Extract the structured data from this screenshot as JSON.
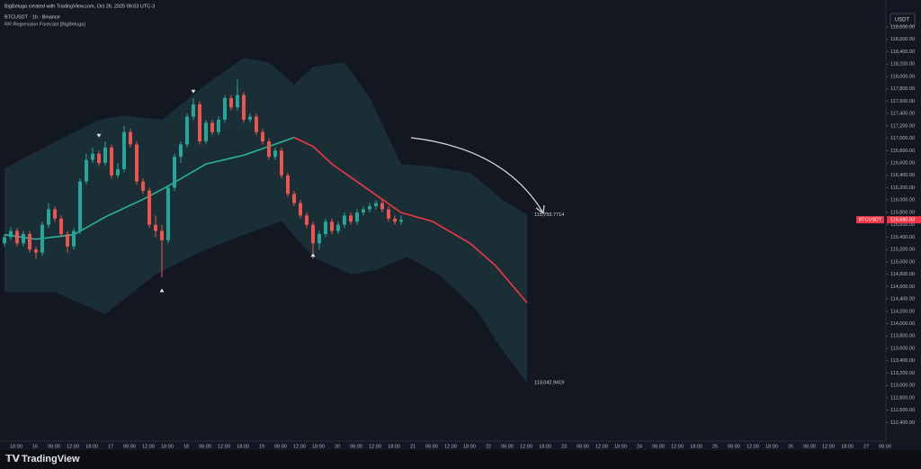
{
  "header": {
    "credit": "BigBeluga created with TradingView.com, Oct 26, 2025 06:03 UTC-3",
    "symbol": "BTCUSDT · 1h · Binance",
    "indicator": "RR Regression Forecast [BigBeluga]"
  },
  "footer": {
    "brand": "TradingView"
  },
  "chart_data": {
    "type": "candlestick",
    "currency": "USDT",
    "up_color": "#26a69a",
    "down_color": "#ef5350",
    "ylim": [
      112100,
      118975
    ],
    "yticks": [
      {
        "value": 118800,
        "label": "118,800.00"
      },
      {
        "value": 118600,
        "label": "118,600.00"
      },
      {
        "value": 118400,
        "label": "118,400.00"
      },
      {
        "value": 118200,
        "label": "118,200.00"
      },
      {
        "value": 118000,
        "label": "118,000.00"
      },
      {
        "value": 117800,
        "label": "117,800.00"
      },
      {
        "value": 117600,
        "label": "117,600.00"
      },
      {
        "value": 117400,
        "label": "117,400.00"
      },
      {
        "value": 117200,
        "label": "117,200.00"
      },
      {
        "value": 117000,
        "label": "117,000.00"
      },
      {
        "value": 116800,
        "label": "116,800.00"
      },
      {
        "value": 116600,
        "label": "116,600.00"
      },
      {
        "value": 116400,
        "label": "116,400.00"
      },
      {
        "value": 116200,
        "label": "116,200.00"
      },
      {
        "value": 116000,
        "label": "116,000.00"
      },
      {
        "value": 115800,
        "label": "115,800.00"
      },
      {
        "value": 115600,
        "label": "115,600.00"
      },
      {
        "value": 115400,
        "label": "115,400.00"
      },
      {
        "value": 115200,
        "label": "115,200.00"
      },
      {
        "value": 115000,
        "label": "115,000.00"
      },
      {
        "value": 114800,
        "label": "114,800.00"
      },
      {
        "value": 114600,
        "label": "114,600.00"
      },
      {
        "value": 114400,
        "label": "114,400.00"
      },
      {
        "value": 114200,
        "label": "114,200.00"
      },
      {
        "value": 114000,
        "label": "114,000.00"
      },
      {
        "value": 113800,
        "label": "113,800.00"
      },
      {
        "value": 113600,
        "label": "113,600.00"
      },
      {
        "value": 113400,
        "label": "113,400.00"
      },
      {
        "value": 113200,
        "label": "113,200.00"
      },
      {
        "value": 113000,
        "label": "113,000.00"
      },
      {
        "value": 112800,
        "label": "112,800.00"
      },
      {
        "value": 112600,
        "label": "112,600.00"
      },
      {
        "value": 112400,
        "label": "112,400.00"
      }
    ],
    "x_labels": [
      "18:00",
      "16",
      "06:00",
      "12:00",
      "18:00",
      "17",
      "06:00",
      "12:00",
      "18:00",
      "18",
      "06:00",
      "12:00",
      "18:00",
      "19",
      "06:00",
      "12:00",
      "18:00",
      "20",
      "06:00",
      "12:00",
      "18:00",
      "21",
      "06:00",
      "12:00",
      "18:00",
      "22",
      "06:00",
      "12:00",
      "18:00",
      "23",
      "06:00",
      "12:00",
      "18:00",
      "24",
      "06:00",
      "12:00",
      "18:00",
      "25",
      "06:00",
      "12:00",
      "18:00",
      "26",
      "06:00",
      "12:00",
      "18:00",
      "27",
      "06:00"
    ],
    "ohlc": [
      [
        115300,
        115450,
        115250,
        115400
      ],
      [
        115400,
        115560,
        115350,
        115500
      ],
      [
        115500,
        115550,
        115250,
        115300
      ],
      [
        115300,
        115500,
        115250,
        115450
      ],
      [
        115450,
        115500,
        115150,
        115200
      ],
      [
        115200,
        115250,
        115050,
        115150
      ],
      [
        115150,
        115650,
        115100,
        115600
      ],
      [
        115600,
        115950,
        115550,
        115850
      ],
      [
        115850,
        115900,
        115650,
        115700
      ],
      [
        115700,
        115750,
        115400,
        115450
      ],
      [
        115450,
        115500,
        115150,
        115250
      ],
      [
        115250,
        115550,
        115200,
        115500
      ],
      [
        115500,
        116350,
        115450,
        116300
      ],
      [
        116300,
        116750,
        116250,
        116650
      ],
      [
        116650,
        116850,
        116600,
        116750
      ],
      [
        116750,
        116800,
        116550,
        116600
      ],
      [
        116600,
        116950,
        116550,
        116850
      ],
      [
        116850,
        116900,
        116350,
        116400
      ],
      [
        116400,
        116600,
        116350,
        116500
      ],
      [
        116500,
        117200,
        116450,
        117100
      ],
      [
        117100,
        117150,
        116850,
        116900
      ],
      [
        116900,
        116950,
        116250,
        116300
      ],
      [
        116300,
        116350,
        116100,
        116150
      ],
      [
        116150,
        116200,
        115550,
        115600
      ],
      [
        115600,
        115750,
        115400,
        115500
      ],
      [
        115500,
        115600,
        114750,
        115350
      ],
      [
        115350,
        116250,
        115300,
        116200
      ],
      [
        116200,
        116750,
        116150,
        116700
      ],
      [
        116700,
        116950,
        116600,
        116900
      ],
      [
        116900,
        117400,
        116850,
        117350
      ],
      [
        117350,
        117650,
        117300,
        117550
      ],
      [
        117550,
        117600,
        116900,
        116950
      ],
      [
        116950,
        117300,
        116900,
        117250
      ],
      [
        117250,
        117300,
        117050,
        117100
      ],
      [
        117100,
        117350,
        117050,
        117300
      ],
      [
        117300,
        117700,
        117250,
        117650
      ],
      [
        117650,
        117700,
        117450,
        117500
      ],
      [
        117500,
        117950,
        117450,
        117700
      ],
      [
        117700,
        117750,
        117250,
        117300
      ],
      [
        117300,
        117400,
        117250,
        117350
      ],
      [
        117350,
        117400,
        117050,
        117100
      ],
      [
        117100,
        117150,
        116900,
        116950
      ],
      [
        116950,
        117000,
        116650,
        116700
      ],
      [
        116700,
        116850,
        116650,
        116800
      ],
      [
        116800,
        116850,
        116350,
        116400
      ],
      [
        116400,
        116450,
        116050,
        116100
      ],
      [
        116100,
        116150,
        115900,
        115950
      ],
      [
        115950,
        116000,
        115700,
        115750
      ],
      [
        115750,
        115800,
        115550,
        115600
      ],
      [
        115600,
        115650,
        115050,
        115300
      ],
      [
        115300,
        115500,
        115200,
        115450
      ],
      [
        115450,
        115700,
        115400,
        115650
      ],
      [
        115650,
        115700,
        115450,
        115500
      ],
      [
        115500,
        115650,
        115450,
        115600
      ],
      [
        115600,
        115800,
        115550,
        115750
      ],
      [
        115750,
        115800,
        115600,
        115650
      ],
      [
        115650,
        115850,
        115600,
        115800
      ],
      [
        115800,
        115900,
        115750,
        115850
      ],
      [
        115850,
        115950,
        115800,
        115900
      ],
      [
        115900,
        116000,
        115850,
        115950
      ],
      [
        115950,
        116000,
        115800,
        115850
      ],
      [
        115850,
        115900,
        115650,
        115700
      ],
      [
        115700,
        115750,
        115600,
        115650
      ],
      [
        115650,
        115750,
        115600,
        115680
      ]
    ],
    "bands": {
      "color": "#1b3438",
      "upper": {
        "x": [
          0,
          8,
          15,
          19,
          25,
          32,
          38,
          42,
          46,
          49,
          54,
          58,
          63,
          68,
          74,
          79,
          83
        ],
        "values": [
          116512,
          116940,
          117298,
          117370,
          117298,
          117870,
          118300,
          118228,
          117870,
          118156,
          118228,
          117656,
          116583,
          116540,
          116440,
          116012,
          115759.7714
        ]
      },
      "lower": {
        "x": [
          0,
          8,
          16,
          24,
          31,
          38,
          44,
          49,
          55,
          59,
          64,
          69,
          75,
          79,
          83
        ],
        "values": [
          114510,
          114510,
          114153,
          114796,
          115154,
          115440,
          115654,
          115082,
          114796,
          114868,
          115082,
          114796,
          114224,
          113580,
          113042.9419
        ]
      }
    },
    "trend_lines": [
      {
        "color": "#2bb39a",
        "x": [
          0,
          5,
          11,
          16,
          22,
          26,
          32,
          38,
          42,
          46
        ],
        "values": [
          115440,
          115368,
          115440,
          115726,
          116012,
          116226,
          116583,
          116726,
          116868,
          117012
        ]
      },
      {
        "color": "#f23645",
        "x": [
          46,
          49,
          52,
          56,
          60,
          63,
          68,
          74,
          78,
          83
        ],
        "values": [
          117012,
          116868,
          116583,
          116298,
          116012,
          115797,
          115654,
          115297,
          114939,
          114338
        ]
      }
    ],
    "signals": {
      "x": [
        15,
        30,
        25,
        49
      ],
      "values": [
        117041,
        117756,
        114539,
        115111
      ],
      "direction": [
        "down",
        "down",
        "up",
        "up"
      ]
    },
    "forecast_labels": [
      {
        "x": 83,
        "value": 115759.7714,
        "label": "115,759.7714"
      },
      {
        "x": 83,
        "value": 113042.9419,
        "label": "113,042.9419"
      }
    ],
    "last_price": {
      "value": 115680.83,
      "label": "115,680.83",
      "tag": "BTCUSDT",
      "color": "#f23645"
    }
  }
}
